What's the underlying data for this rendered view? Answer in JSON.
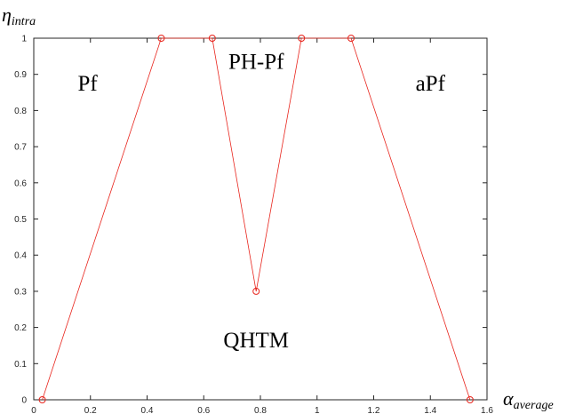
{
  "chart_data": {
    "type": "line",
    "title": "",
    "xlabel": {
      "symbol": "α",
      "subscript": "average"
    },
    "ylabel": {
      "symbol": "η",
      "subscript": "intra"
    },
    "xlim": [
      0,
      1.6
    ],
    "ylim": [
      0,
      1
    ],
    "x_ticks": [
      0,
      0.2,
      0.4,
      0.6,
      0.8,
      1,
      1.2,
      1.4,
      1.6
    ],
    "x_tick_labels": [
      "0",
      "0.2",
      "0.4",
      "0.6",
      "0.8",
      "1",
      "1.2",
      "1.4",
      "1.6"
    ],
    "y_ticks": [
      0,
      0.1,
      0.2,
      0.3,
      0.4,
      0.5,
      0.6,
      0.7,
      0.8,
      0.9,
      1
    ],
    "y_tick_labels": [
      "0",
      "0.1",
      "0.2",
      "0.3",
      "0.4",
      "0.5",
      "0.6",
      "0.7",
      "0.8",
      "0.9",
      "1"
    ],
    "grid": false,
    "series": [
      {
        "color": "#e8241c",
        "marker": "circle",
        "x": [
          0.03,
          0.45,
          0.63,
          0.785,
          0.945,
          1.12,
          1.54
        ],
        "y": [
          0,
          1,
          1,
          0.3,
          1,
          1,
          0
        ]
      }
    ],
    "annotations": [
      {
        "text": "Pf",
        "x": 0.19,
        "y": 0.875
      },
      {
        "text": "PH-Pf",
        "x": 0.785,
        "y": 0.935
      },
      {
        "text": "aPf",
        "x": 1.4,
        "y": 0.875
      },
      {
        "text": "QHTM",
        "x": 0.785,
        "y": 0.165
      }
    ]
  }
}
